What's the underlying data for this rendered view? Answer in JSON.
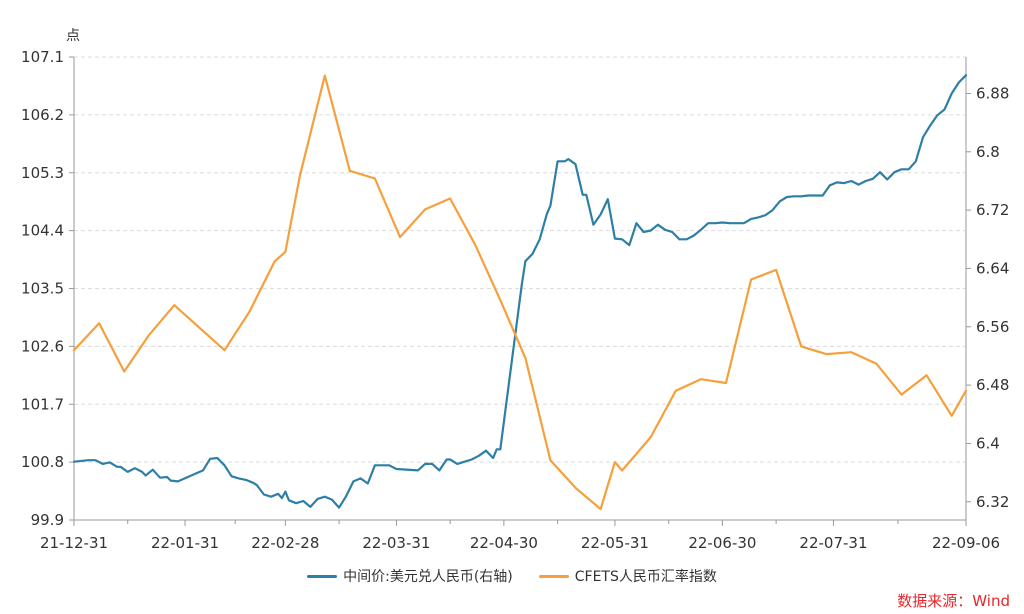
{
  "chart_data": {
    "type": "line",
    "unit_label": "点",
    "colors": {
      "rmb_mid": "#2e7fa6",
      "cfets": "#f5a03c",
      "grid": "#dcdcdc",
      "axis": "#9a9a9a"
    },
    "x_ticks": [
      "21-12-31",
      "22-01-31",
      "22-02-28",
      "22-03-31",
      "22-04-30",
      "22-05-31",
      "22-06-30",
      "22-07-31",
      "22-09-06"
    ],
    "left_axis": {
      "ticks": [
        "99.9",
        "100.8",
        "101.7",
        "102.6",
        "103.5",
        "104.4",
        "105.3",
        "106.2",
        "107.1"
      ],
      "ylim": [
        99.9,
        107.1
      ]
    },
    "right_axis": {
      "ticks": [
        "6.32",
        "6.4",
        "6.48",
        "6.56",
        "6.64",
        "6.72",
        "6.8",
        "6.88"
      ],
      "ylim": [
        6.295,
        6.93
      ]
    },
    "series": [
      {
        "name": "中间价:美元兑人民币(右轴)",
        "axis": "right",
        "color": "#2e7fa6",
        "x": [
          "2021-12-31",
          "2022-01-04",
          "2022-01-06",
          "2022-01-08",
          "2022-01-10",
          "2022-01-12",
          "2022-01-13",
          "2022-01-15",
          "2022-01-17",
          "2022-01-19",
          "2022-01-20",
          "2022-01-22",
          "2022-01-24",
          "2022-01-26",
          "2022-01-27",
          "2022-01-29",
          "2022-02-05",
          "2022-02-07",
          "2022-02-09",
          "2022-02-11",
          "2022-02-13",
          "2022-02-15",
          "2022-02-17",
          "2022-02-19",
          "2022-02-20",
          "2022-02-22",
          "2022-02-24",
          "2022-02-26",
          "2022-02-27",
          "2022-02-28",
          "2022-03-01",
          "2022-03-03",
          "2022-03-05",
          "2022-03-07",
          "2022-03-09",
          "2022-03-11",
          "2022-03-13",
          "2022-03-15",
          "2022-03-17",
          "2022-03-19",
          "2022-03-21",
          "2022-03-23",
          "2022-03-25",
          "2022-03-27",
          "2022-03-29",
          "2022-03-31",
          "2022-04-06",
          "2022-04-08",
          "2022-04-10",
          "2022-04-12",
          "2022-04-14",
          "2022-04-15",
          "2022-04-17",
          "2022-04-19",
          "2022-04-21",
          "2022-04-23",
          "2022-04-25",
          "2022-04-27",
          "2022-04-28",
          "2022-04-29",
          "2022-05-05",
          "2022-05-06",
          "2022-05-08",
          "2022-05-10",
          "2022-05-12",
          "2022-05-13",
          "2022-05-15",
          "2022-05-17",
          "2022-05-18",
          "2022-05-20",
          "2022-05-22",
          "2022-05-23",
          "2022-05-25",
          "2022-05-27",
          "2022-05-29",
          "2022-05-31",
          "2022-06-02",
          "2022-06-04",
          "2022-06-06",
          "2022-06-08",
          "2022-06-10",
          "2022-06-12",
          "2022-06-14",
          "2022-06-16",
          "2022-06-18",
          "2022-06-20",
          "2022-06-22",
          "2022-06-24",
          "2022-06-26",
          "2022-06-28",
          "2022-06-30",
          "2022-07-02",
          "2022-07-04",
          "2022-07-06",
          "2022-07-08",
          "2022-07-10",
          "2022-07-12",
          "2022-07-14",
          "2022-07-16",
          "2022-07-18",
          "2022-07-20",
          "2022-07-22",
          "2022-07-24",
          "2022-07-26",
          "2022-07-28",
          "2022-07-30",
          "2022-08-01",
          "2022-08-03",
          "2022-08-05",
          "2022-08-07",
          "2022-08-09",
          "2022-08-11",
          "2022-08-13",
          "2022-08-15",
          "2022-08-17",
          "2022-08-19",
          "2022-08-21",
          "2022-08-23",
          "2022-08-25",
          "2022-08-27",
          "2022-08-29",
          "2022-08-31",
          "2022-09-02",
          "2022-09-04",
          "2022-09-06"
        ],
        "values": [
          6.375,
          6.377,
          6.377,
          6.372,
          6.374,
          6.368,
          6.368,
          6.361,
          6.366,
          6.361,
          6.356,
          6.364,
          6.353,
          6.354,
          6.349,
          6.348,
          6.363,
          6.379,
          6.38,
          6.37,
          6.355,
          6.352,
          6.35,
          6.346,
          6.343,
          6.33,
          6.327,
          6.331,
          6.325,
          6.334,
          6.322,
          6.318,
          6.321,
          6.313,
          6.324,
          6.327,
          6.323,
          6.312,
          6.328,
          6.348,
          6.352,
          6.345,
          6.37,
          6.37,
          6.37,
          6.365,
          6.363,
          6.372,
          6.372,
          6.363,
          6.378,
          6.378,
          6.372,
          6.375,
          6.378,
          6.383,
          6.39,
          6.38,
          6.392,
          6.392,
          6.618,
          6.65,
          6.66,
          6.68,
          6.715,
          6.726,
          6.787,
          6.787,
          6.79,
          6.783,
          6.741,
          6.741,
          6.7,
          6.714,
          6.735,
          6.681,
          6.68,
          6.672,
          6.702,
          6.69,
          6.692,
          6.7,
          6.693,
          6.69,
          6.68,
          6.68,
          6.685,
          6.693,
          6.702,
          6.702,
          6.703,
          6.702,
          6.702,
          6.702,
          6.708,
          6.71,
          6.713,
          6.72,
          6.732,
          6.738,
          6.739,
          6.739,
          6.74,
          6.74,
          6.74,
          6.754,
          6.758,
          6.757,
          6.76,
          6.755,
          6.76,
          6.763,
          6.772,
          6.762,
          6.772,
          6.776,
          6.776,
          6.787,
          6.82,
          6.836,
          6.85,
          6.858,
          6.88,
          6.895,
          6.905
        ]
      },
      {
        "name": "CFETS人民币汇率指数",
        "axis": "left",
        "color": "#f5a03c",
        "x": [
          "2021-12-31",
          "2022-01-07",
          "2022-01-14",
          "2022-01-21",
          "2022-01-28",
          "2022-02-11",
          "2022-02-18",
          "2022-02-25",
          "2022-02-28",
          "2022-03-04",
          "2022-03-11",
          "2022-03-18",
          "2022-03-25",
          "2022-04-01",
          "2022-04-08",
          "2022-04-15",
          "2022-04-22",
          "2022-04-29",
          "2022-05-06",
          "2022-05-13",
          "2022-05-20",
          "2022-05-27",
          "2022-05-31",
          "2022-06-02",
          "2022-06-10",
          "2022-06-17",
          "2022-06-24",
          "2022-07-01",
          "2022-07-08",
          "2022-07-15",
          "2022-07-22",
          "2022-07-29",
          "2022-08-05",
          "2022-08-12",
          "2022-08-19",
          "2022-08-26",
          "2022-09-02",
          "2022-09-06"
        ],
        "values": [
          102.54,
          102.96,
          102.21,
          102.78,
          103.24,
          102.54,
          103.14,
          103.92,
          104.07,
          105.24,
          106.81,
          105.33,
          105.21,
          104.3,
          104.73,
          104.9,
          104.18,
          103.32,
          102.42,
          100.83,
          100.4,
          100.07,
          100.8,
          100.67,
          101.19,
          101.91,
          102.09,
          102.03,
          103.64,
          103.79,
          102.6,
          102.48,
          102.51,
          102.33,
          101.85,
          102.15,
          101.52,
          101.91
        ]
      }
    ]
  },
  "legend": {
    "rmb_mid_label": "中间价:美元兑人民币(右轴)",
    "cfets_label": "CFETS人民币汇率指数"
  },
  "source_text": "数据来源：Wind"
}
